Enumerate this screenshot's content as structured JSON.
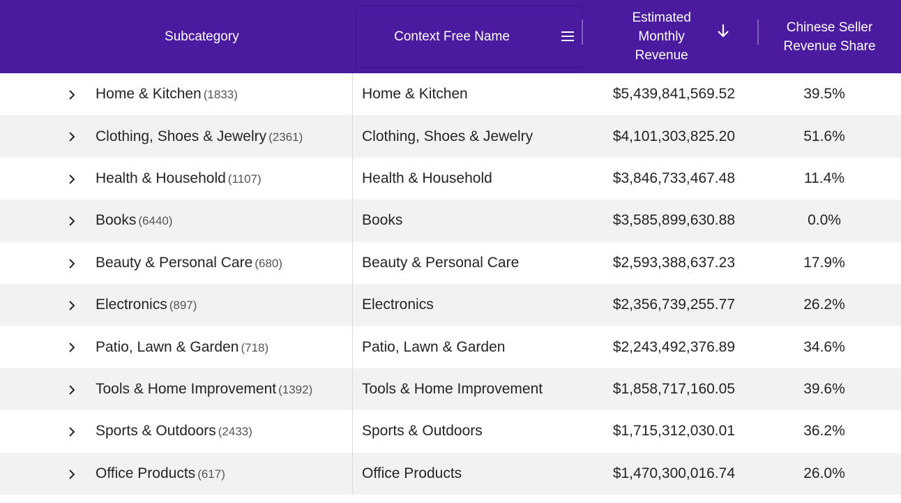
{
  "columns": {
    "subcategory": "Subcategory",
    "context_free_name": "Context Free Name",
    "revenue_line1": "Estimated",
    "revenue_line2": "Monthly",
    "revenue_line3": "Revenue",
    "share_line1": "Chinese Seller",
    "share_line2": "Revenue Share"
  },
  "colors": {
    "header_bg": "#4a1a9f",
    "alt_row": "#f2f2f2"
  },
  "icons": {
    "column_menu": "hamburger-menu-icon",
    "sort": "arrow-down-icon",
    "expand": "chevron-right-icon"
  },
  "rows": [
    {
      "subcategory": "Home & Kitchen",
      "count": "(1833)",
      "context_free_name": "Home & Kitchen",
      "revenue": "$5,439,841,569.52",
      "share": "39.5%"
    },
    {
      "subcategory": "Clothing, Shoes & Jewelry",
      "count": "(2361)",
      "context_free_name": "Clothing, Shoes & Jewelry",
      "revenue": "$4,101,303,825.20",
      "share": "51.6%"
    },
    {
      "subcategory": "Health & Household",
      "count": "(1107)",
      "context_free_name": "Health & Household",
      "revenue": "$3,846,733,467.48",
      "share": "11.4%"
    },
    {
      "subcategory": "Books",
      "count": "(6440)",
      "context_free_name": "Books",
      "revenue": "$3,585,899,630.88",
      "share": "0.0%"
    },
    {
      "subcategory": "Beauty & Personal Care",
      "count": "(680)",
      "context_free_name": "Beauty & Personal Care",
      "revenue": "$2,593,388,637.23",
      "share": "17.9%"
    },
    {
      "subcategory": "Electronics",
      "count": "(897)",
      "context_free_name": "Electronics",
      "revenue": "$2,356,739,255.77",
      "share": "26.2%"
    },
    {
      "subcategory": "Patio, Lawn & Garden",
      "count": "(718)",
      "context_free_name": "Patio, Lawn & Garden",
      "revenue": "$2,243,492,376.89",
      "share": "34.6%"
    },
    {
      "subcategory": "Tools & Home Improvement",
      "count": "(1392)",
      "context_free_name": "Tools & Home Improvement",
      "revenue": "$1,858,717,160.05",
      "share": "39.6%"
    },
    {
      "subcategory": "Sports & Outdoors",
      "count": "(2433)",
      "context_free_name": "Sports & Outdoors",
      "revenue": "$1,715,312,030.01",
      "share": "36.2%"
    },
    {
      "subcategory": "Office Products",
      "count": "(617)",
      "context_free_name": "Office Products",
      "revenue": "$1,470,300,016.74",
      "share": "26.0%"
    }
  ]
}
